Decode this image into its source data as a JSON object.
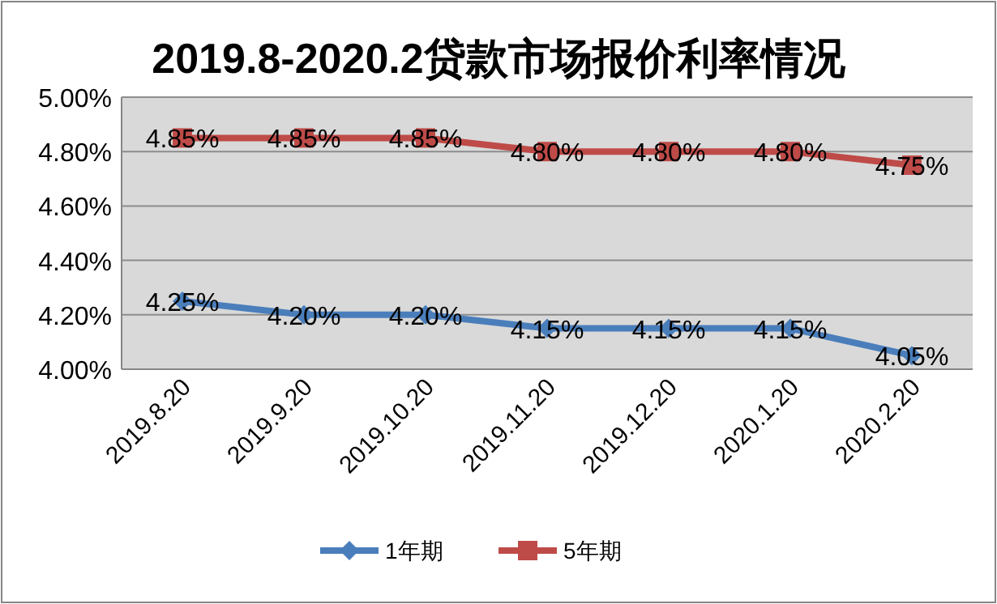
{
  "chart_data": {
    "type": "line",
    "title": "2019.8-2020.2贷款市场报价利率情况",
    "categories": [
      "2019.8.20",
      "2019.9.20",
      "2019.10.20",
      "2019.11.20",
      "2019.12.20",
      "2020.1.20",
      "2020.2.20"
    ],
    "series": [
      {
        "name": "1年期",
        "color": "#4a7ebb",
        "marker": "diamond",
        "values": [
          4.25,
          4.2,
          4.2,
          4.15,
          4.15,
          4.15,
          4.05
        ],
        "value_labels": [
          "4.25%",
          "4.20%",
          "4.20%",
          "4.15%",
          "4.15%",
          "4.15%",
          "4.05%"
        ]
      },
      {
        "name": "5年期",
        "color": "#be4b48",
        "marker": "square",
        "values": [
          4.85,
          4.85,
          4.85,
          4.8,
          4.8,
          4.8,
          4.75
        ],
        "value_labels": [
          "4.85%",
          "4.85%",
          "4.85%",
          "4.80%",
          "4.80%",
          "4.80%",
          "4.75%"
        ]
      }
    ],
    "ylim": [
      4.0,
      5.0
    ],
    "yticks": [
      {
        "value": 4.0,
        "label": "4.00%"
      },
      {
        "value": 4.2,
        "label": "4.20%"
      },
      {
        "value": 4.4,
        "label": "4.40%"
      },
      {
        "value": 4.6,
        "label": "4.60%"
      },
      {
        "value": 4.8,
        "label": "4.80%"
      },
      {
        "value": 5.0,
        "label": "5.00%"
      }
    ],
    "grid": "y",
    "legend": "bottom",
    "line_style": "solid"
  }
}
